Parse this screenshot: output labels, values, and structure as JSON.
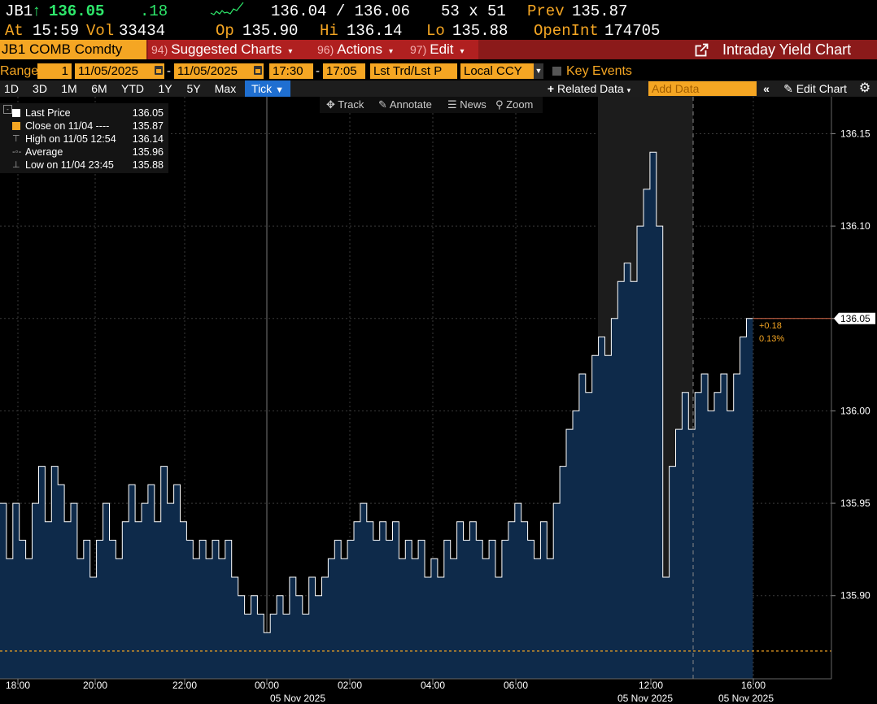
{
  "quote": {
    "ticker": "JB1",
    "arrow": "↑",
    "last": "136.05",
    "change": ".18",
    "bid_ask": "136.04 / 136.06",
    "size": "53 x 51",
    "prev_label": "Prev",
    "prev": "135.87",
    "at_label": "At",
    "time": "15:59",
    "vol_label": "Vol",
    "vol": "33434",
    "open_label": "Op",
    "open": "135.90",
    "hi_label": "Hi",
    "hi": "136.14",
    "lo_label": "Lo",
    "lo": "135.88",
    "oi_label": "OpenInt",
    "oi": "174705"
  },
  "fnbar": {
    "security": "JB1 COMB Comdty",
    "suggested_num": "94)",
    "suggested": "Suggested Charts",
    "actions_num": "96)",
    "actions": "Actions",
    "edit_num": "97)",
    "edit": "Edit",
    "title": "Intraday Yield Chart"
  },
  "rangebar": {
    "range_label": "Range",
    "range_value": "1",
    "start_date": "11/05/2025",
    "dash": "-",
    "end_date": "11/05/2025",
    "start_time": "17:30",
    "end_time": "17:05",
    "price_type": "Lst Trd/Lst P",
    "currency": "Local CCY",
    "key_events": "Key Events"
  },
  "tabs": {
    "periods": [
      "1D",
      "3D",
      "1M",
      "6M",
      "YTD",
      "1Y",
      "5Y",
      "Max"
    ],
    "active": "Tick",
    "related": "Related Data",
    "add_data_placeholder": "Add Data",
    "edit_chart": "Edit Chart"
  },
  "tools": {
    "track": "Track",
    "annotate": "Annotate",
    "news": "News",
    "zoom": "Zoom"
  },
  "legend": {
    "rows": [
      {
        "label": "Last Price",
        "value": "136.05"
      },
      {
        "label": "Close on 11/04 ----",
        "value": "135.87"
      },
      {
        "label": "High on 11/05 12:54",
        "value": "136.14"
      },
      {
        "label": "Average",
        "value": "135.96"
      },
      {
        "label": "Low on 11/04 23:45",
        "value": "135.88"
      }
    ]
  },
  "chart_data": {
    "type": "area",
    "x_tick_labels": [
      "18:00",
      "20:00",
      "22:00",
      "00:00",
      "02:00",
      "04:00",
      "06:00",
      "12:00",
      "16:00"
    ],
    "x_date_labels": [
      "05 Nov 2025",
      "05 Nov 2025",
      "05 Nov 2025"
    ],
    "y_tick_labels": [
      "136.15",
      "136.10",
      "136.05",
      "136.00",
      "135.95",
      "135.90"
    ],
    "ylim": [
      135.855,
      136.17
    ],
    "last_price": 136.05,
    "prev_close": 135.87,
    "change_label": "+0.18",
    "change_pct_label": "0.13%",
    "line_color": "#ffffff",
    "fill_color": "#0e2a4a",
    "prev_close_color": "#f5a623",
    "series": [
      {
        "values": [
          135.95,
          135.92,
          135.95,
          135.93,
          135.92,
          135.95,
          135.97,
          135.94,
          135.97,
          135.96,
          135.94,
          135.95,
          135.92,
          135.93,
          135.91,
          135.93,
          135.95,
          135.93,
          135.92,
          135.94,
          135.96,
          135.94,
          135.95,
          135.96,
          135.94,
          135.97,
          135.95,
          135.96,
          135.94,
          135.93,
          135.92,
          135.93,
          135.92,
          135.93,
          135.92,
          135.93,
          135.91,
          135.9,
          135.89,
          135.9,
          135.89,
          135.88,
          135.89,
          135.9,
          135.89,
          135.91,
          135.9,
          135.89,
          135.91,
          135.9,
          135.91,
          135.92,
          135.93,
          135.92,
          135.93,
          135.94,
          135.95,
          135.94,
          135.93,
          135.94,
          135.93,
          135.94,
          135.92,
          135.93,
          135.92,
          135.93,
          135.91,
          135.92,
          135.91,
          135.93,
          135.92,
          135.94,
          135.93,
          135.94,
          135.93,
          135.92,
          135.93,
          135.91,
          135.93,
          135.94,
          135.95,
          135.94,
          135.93,
          135.92,
          135.94,
          135.92,
          135.95,
          135.97,
          135.99,
          136.0,
          136.02,
          136.01,
          136.03,
          136.04,
          136.03,
          136.05,
          136.07,
          136.08,
          136.07,
          136.1,
          136.12,
          136.14,
          136.1,
          135.91,
          135.97,
          135.99,
          136.01,
          135.99,
          136.01,
          136.02,
          136.0,
          136.01,
          136.02,
          136.0,
          136.02,
          136.04,
          136.05
        ],
        "x_fraction_end": 0.9055
      }
    ]
  }
}
